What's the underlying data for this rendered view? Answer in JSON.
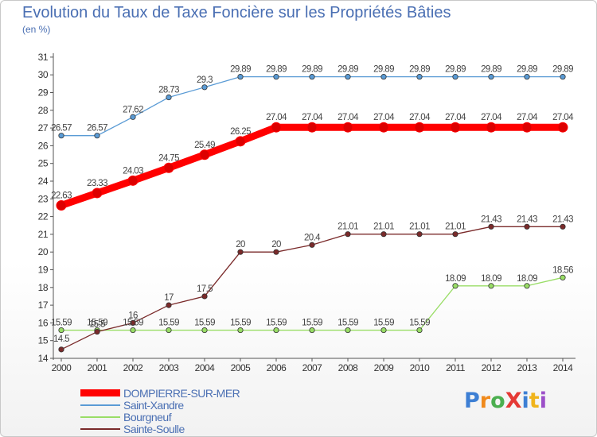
{
  "title": "Evolution du Taux de Taxe Foncière sur les Propriétés Bâties",
  "unit": "(en %)",
  "logo": {
    "text": "ProXiti",
    "colors": [
      "#3d7fd4",
      "#f08a1c",
      "#4caf50",
      "#e53935",
      "#3d7fd4",
      "#f0b41c",
      "#9c4fc8"
    ]
  },
  "chart_data": {
    "type": "line",
    "title": "Evolution du Taux de Taxe Foncière sur les Propriétés Bâties",
    "ylabel": "(en %)",
    "ylim": [
      14,
      31
    ],
    "yticks": [
      14,
      15,
      16,
      17,
      18,
      19,
      20,
      21,
      22,
      23,
      24,
      25,
      26,
      27,
      28,
      29,
      30,
      31
    ],
    "grid": false,
    "legend_position": "bottom-left",
    "x": [
      "2000",
      "2001",
      "2002",
      "2003",
      "2004",
      "2005",
      "2006",
      "2007",
      "2008",
      "2009",
      "2010",
      "2011",
      "2012",
      "2013",
      "2014"
    ],
    "series": [
      {
        "name": "DOMPIERRE-SUR-MER",
        "color": "#ff0000",
        "emphasis": true,
        "values": [
          22.63,
          23.33,
          24.03,
          24.75,
          25.49,
          26.25,
          27.04,
          27.04,
          27.04,
          27.04,
          27.04,
          27.04,
          27.04,
          27.04,
          27.04
        ]
      },
      {
        "name": "Saint-Xandre",
        "color": "#5a9bd5",
        "values": [
          26.57,
          26.57,
          27.62,
          28.73,
          29.3,
          29.89,
          29.89,
          29.89,
          29.89,
          29.89,
          29.89,
          29.89,
          29.89,
          29.89,
          29.89
        ]
      },
      {
        "name": "Bourgneuf",
        "color": "#99dd66",
        "values": [
          15.59,
          15.59,
          15.59,
          15.59,
          15.59,
          15.59,
          15.59,
          15.59,
          15.59,
          15.59,
          15.59,
          18.09,
          18.09,
          18.09,
          18.56
        ]
      },
      {
        "name": "Sainte-Soulle",
        "color": "#7a2a2a",
        "values": [
          14.5,
          15.5,
          16,
          17,
          17.5,
          20,
          20,
          20.4,
          21.01,
          21.01,
          21.01,
          21.01,
          21.43,
          21.43,
          21.43
        ]
      }
    ],
    "point_labels": [
      [
        "22.63",
        "23.33",
        "24.03",
        "24.75",
        "25.49",
        "26.25",
        "27.04",
        "27.04",
        "27.04",
        "27.04",
        "27.04",
        "27.04",
        "27.04",
        "27.04",
        "27.04"
      ],
      [
        "26.57",
        "26.57",
        "27.62",
        "28.73",
        "29.3",
        "29.89",
        "29.89",
        "29.89",
        "29.89",
        "29.89",
        "29.89",
        "29.89",
        "29.89",
        "29.89",
        "29.89"
      ],
      [
        "15.59",
        "15.59",
        "15.59",
        "15.59",
        "15.59",
        "15.59",
        "15.59",
        "15.59",
        "15.59",
        "15.59",
        "15.59",
        "18.09",
        "18.09",
        "18.09",
        "18.56"
      ],
      [
        "14.5",
        "15.5",
        "16",
        "17",
        "17.5",
        "20",
        "20",
        "20.4",
        "21.01",
        "21.01",
        "21.01",
        "21.01",
        "21.43",
        "21.43",
        "21.43"
      ]
    ]
  }
}
